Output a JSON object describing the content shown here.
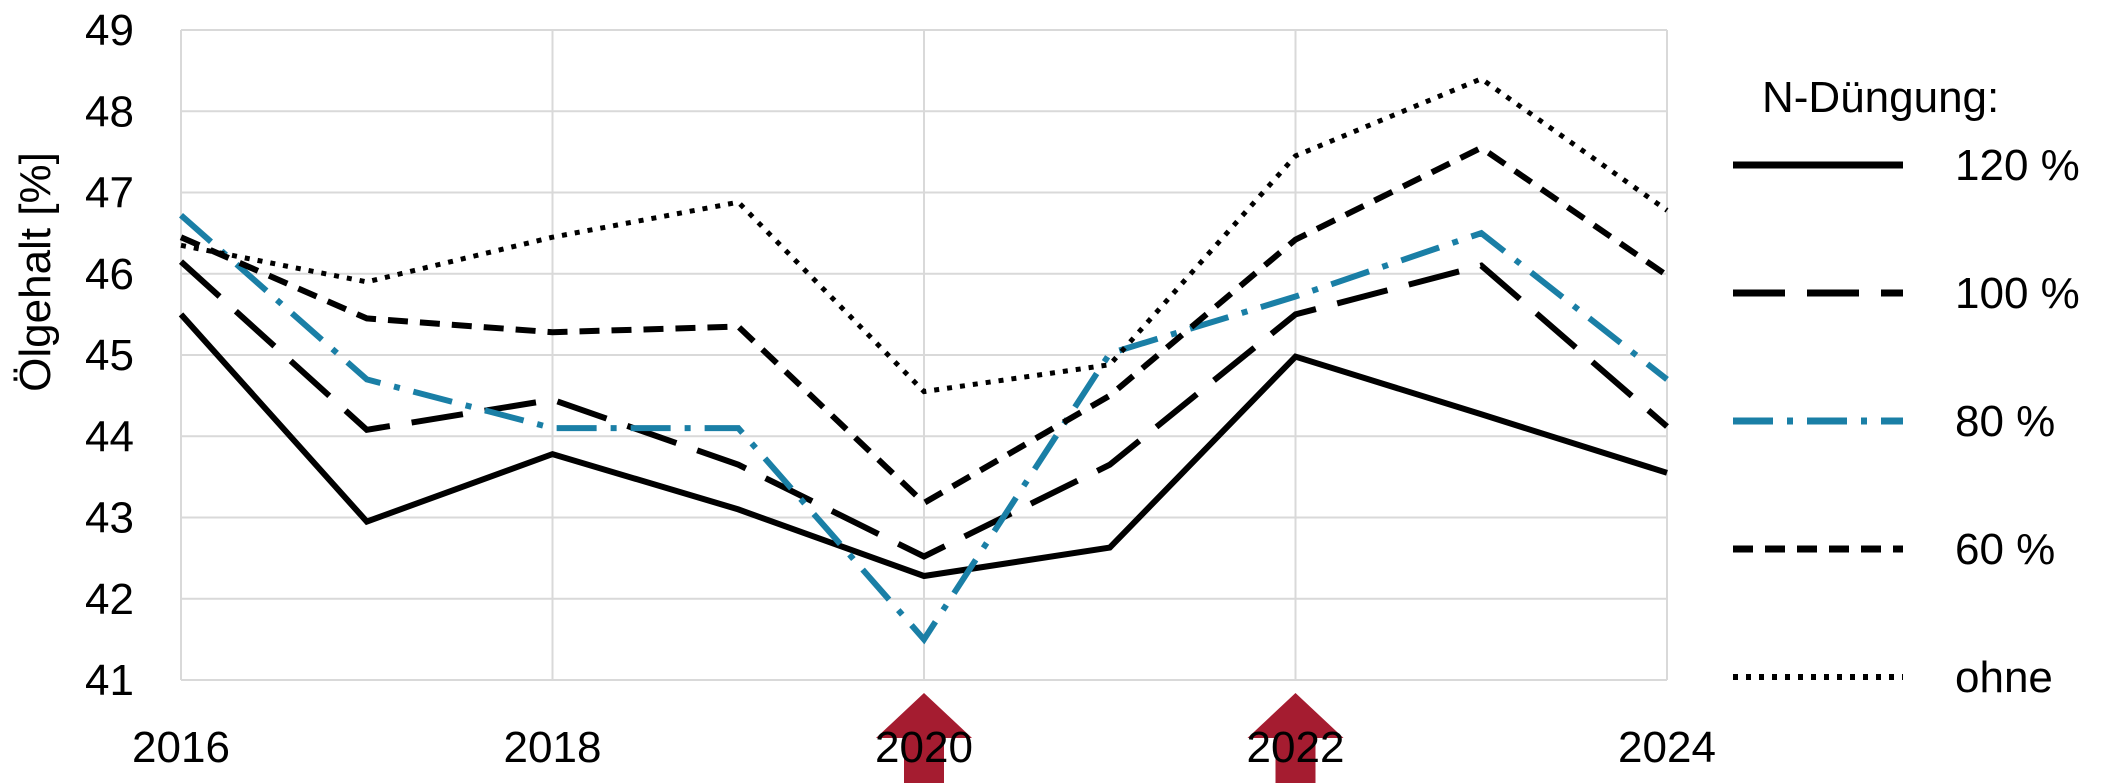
{
  "chart_data": {
    "type": "line",
    "title": "",
    "xlabel": "",
    "ylabel": "Ölgehalt [%]",
    "xlim": [
      2016,
      2024
    ],
    "ylim": [
      41,
      49
    ],
    "x_ticks": [
      "2016",
      "2018",
      "2020",
      "2022",
      "2024"
    ],
    "y_ticks": [
      "41",
      "42",
      "43",
      "44",
      "45",
      "46",
      "47",
      "48",
      "49"
    ],
    "grid": true,
    "legend_title": "N-Düngung:",
    "legend_position": "right",
    "x": [
      2016,
      2017,
      2018,
      2019,
      2020,
      2021,
      2022,
      2023,
      2024
    ],
    "series": [
      {
        "name": "120 %",
        "color": "#000000",
        "dash": "solid",
        "values": [
          45.5,
          42.95,
          43.78,
          43.1,
          42.28,
          42.63,
          44.98,
          44.27,
          43.55
        ]
      },
      {
        "name": "100 %",
        "color": "#000000",
        "dash": "long-dash",
        "values": [
          46.15,
          44.08,
          44.45,
          43.65,
          42.52,
          43.65,
          45.5,
          46.1,
          44.12
        ]
      },
      {
        "name": "80 %",
        "color": "#1A7FA6",
        "dash": "dash-dot",
        "values": [
          46.72,
          44.7,
          44.1,
          44.1,
          41.5,
          45.02,
          45.72,
          46.5,
          44.7
        ]
      },
      {
        "name": "60 %",
        "color": "#000000",
        "dash": "short-dash",
        "values": [
          46.45,
          45.45,
          45.28,
          45.35,
          43.18,
          44.5,
          46.42,
          47.55,
          45.98
        ]
      },
      {
        "name": "ohne",
        "color": "#000000",
        "dash": "dotted",
        "values": [
          46.35,
          45.9,
          46.45,
          46.88,
          44.55,
          44.88,
          47.45,
          48.4,
          46.78
        ]
      }
    ],
    "annotations": [
      {
        "type": "arrow-up",
        "x": 2020,
        "color": "#A51C30"
      },
      {
        "type": "arrow-up",
        "x": 2022,
        "color": "#A51C30"
      }
    ]
  }
}
